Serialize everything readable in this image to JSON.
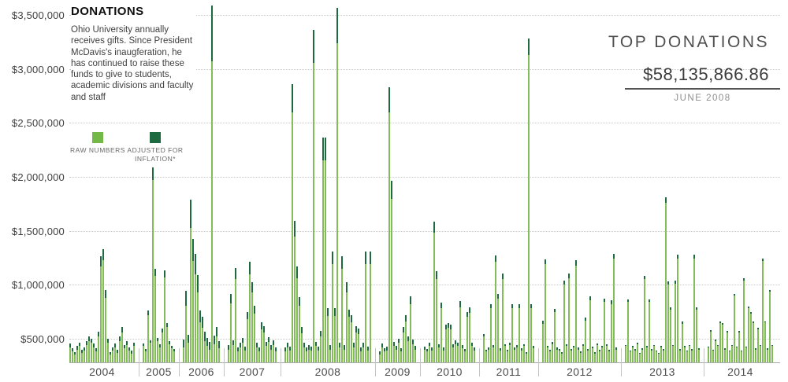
{
  "header": {
    "title": "DONATIONS",
    "description": "Ohio University annually receives gifts. Since President McDavis's inaugferation, he has continued to raise these funds to give to students, academic divisions and faculty and staff"
  },
  "legend": {
    "items": [
      {
        "label": "RAW NUMBERS",
        "color": "#74b847"
      },
      {
        "label": "ADJUSTED FOR INFLATION*",
        "color": "#1d6a40"
      }
    ]
  },
  "top_donations": {
    "heading": "TOP DONATIONS",
    "amount": "$58,135,866.86",
    "date": "JUNE 2008"
  },
  "colors": {
    "raw_bar": "#82bd5a",
    "adjusted_bar": "#1d6a40",
    "grid": "#c9c9c9",
    "axis": "#a9a9a9"
  },
  "y_axis": {
    "ticks": [
      {
        "label": "$3,500,000",
        "value_k": 3500
      },
      {
        "label": "$3,000,000",
        "value_k": 3000
      },
      {
        "label": "$2,500,000",
        "value_k": 2500
      },
      {
        "label": "$2,000,000",
        "value_k": 2000
      },
      {
        "label": "$1,500,000",
        "value_k": 1500
      },
      {
        "label": "$1,000,000",
        "value_k": 1000
      },
      {
        "label": "$500,000",
        "value_k": 500
      }
    ]
  },
  "chart_data": {
    "type": "bar",
    "title": "DONATIONS",
    "unit": "USD thousands",
    "series_note": "Each bar is one donation: light green = raw amount, dark green (drawn behind, taller) = same amount adjusted for inflation (raw_k x inflation_factor). Y axis is cropped: baseline starts at ~$280k, top of frame ~$3,640k; taller bars are clipped.",
    "legend": [
      "RAW NUMBERS",
      "ADJUSTED FOR INFLATION*"
    ],
    "ylim_k": [
      280,
      3640
    ],
    "grid": "dotted horizontal lines every $500,000",
    "legend_position": "upper-left under description",
    "years": [
      {
        "label": "2004",
        "inflation_factor": 1.08,
        "raw_k": [
          420,
          380,
          350,
          400,
          430,
          370,
          390,
          440,
          480,
          460,
          420,
          380,
          520,
          1170,
          1230,
          880,
          460,
          350,
          390,
          420,
          370,
          480,
          560,
          410,
          440,
          390,
          360,
          430
        ]
      },
      {
        "label": "2005",
        "inflation_factor": 1.06,
        "raw_k": [
          430,
          380,
          720,
          460,
          1970,
          1080,
          480,
          420,
          560,
          1070,
          610,
          450,
          410,
          380
        ]
      },
      {
        "label": "2006",
        "inflation_factor": 1.17,
        "raw_k": [
          420,
          805,
          460,
          1530,
          1220,
          1100,
          930,
          650,
          600,
          480,
          430,
          400,
          3070,
          450,
          520,
          410
        ]
      },
      {
        "label": "2007",
        "inflation_factor": 1.1,
        "raw_k": [
          400,
          830,
          440,
          1050,
          380,
          420,
          460,
          390,
          680,
          1100,
          930,
          730,
          420,
          380,
          590,
          560,
          430,
          470,
          400,
          440,
          380
        ]
      },
      {
        "label": "2008",
        "inflation_factor": 1.1,
        "raw_k": [
          380,
          420,
          390,
          2600,
          1450,
          1060,
          805,
          550,
          420,
          380,
          400,
          390,
          3060,
          430,
          390,
          520,
          2150,
          2150,
          710,
          400,
          1190,
          710,
          3240,
          420,
          1150,
          400,
          930,
          700,
          650,
          420,
          560,
          540,
          380,
          420,
          1190,
          390,
          1190
        ]
      },
      {
        "label": "2009",
        "inflation_factor": 1.09,
        "raw_k": [
          350,
          420,
          380,
          390,
          2600,
          1800,
          430,
          400,
          460,
          380,
          560,
          660,
          480,
          820,
          450,
          400
        ]
      },
      {
        "label": "2010",
        "inflation_factor": 1.07,
        "raw_k": [
          400,
          380,
          430,
          390,
          1480,
          1050,
          420,
          780,
          390,
          590,
          600,
          590,
          420,
          450,
          430,
          790,
          410,
          380,
          700,
          740,
          430,
          390
        ]
      },
      {
        "label": "2011",
        "inflation_factor": 1.05,
        "raw_k": [
          520,
          380,
          400,
          780,
          420,
          1210,
          870,
          390,
          1050,
          430,
          380,
          440,
          780,
          400,
          420,
          780,
          390,
          430,
          360,
          3130,
          780,
          410
        ]
      },
      {
        "label": "2012",
        "inflation_factor": 1.04,
        "raw_k": [
          640,
          1190,
          420,
          380,
          450,
          745,
          400,
          390,
          360,
          1000,
          430,
          1060,
          390,
          420,
          1180,
          400,
          370,
          430,
          670,
          390,
          855,
          410,
          360,
          440,
          380,
          420,
          840,
          430,
          380,
          820,
          1240,
          400
        ]
      },
      {
        "label": "2013",
        "inflation_factor": 1.03,
        "raw_k": [
          430,
          840,
          380,
          420,
          390,
          450,
          360,
          400,
          1050,
          420,
          840,
          390,
          430,
          380,
          360,
          420,
          390,
          1760,
          1000,
          770,
          430,
          1010,
          1240,
          390,
          640,
          420,
          380,
          430,
          390,
          1240,
          770,
          400
        ]
      },
      {
        "label": "2014",
        "inflation_factor": 1.02,
        "raw_k": [
          420,
          565,
          390,
          480,
          430,
          645,
          630,
          400,
          560,
          380,
          430,
          900,
          420,
          560,
          380,
          1040,
          420,
          780,
          730,
          645,
          400,
          590,
          430,
          1220,
          650,
          400,
          935,
          430
        ]
      }
    ]
  }
}
